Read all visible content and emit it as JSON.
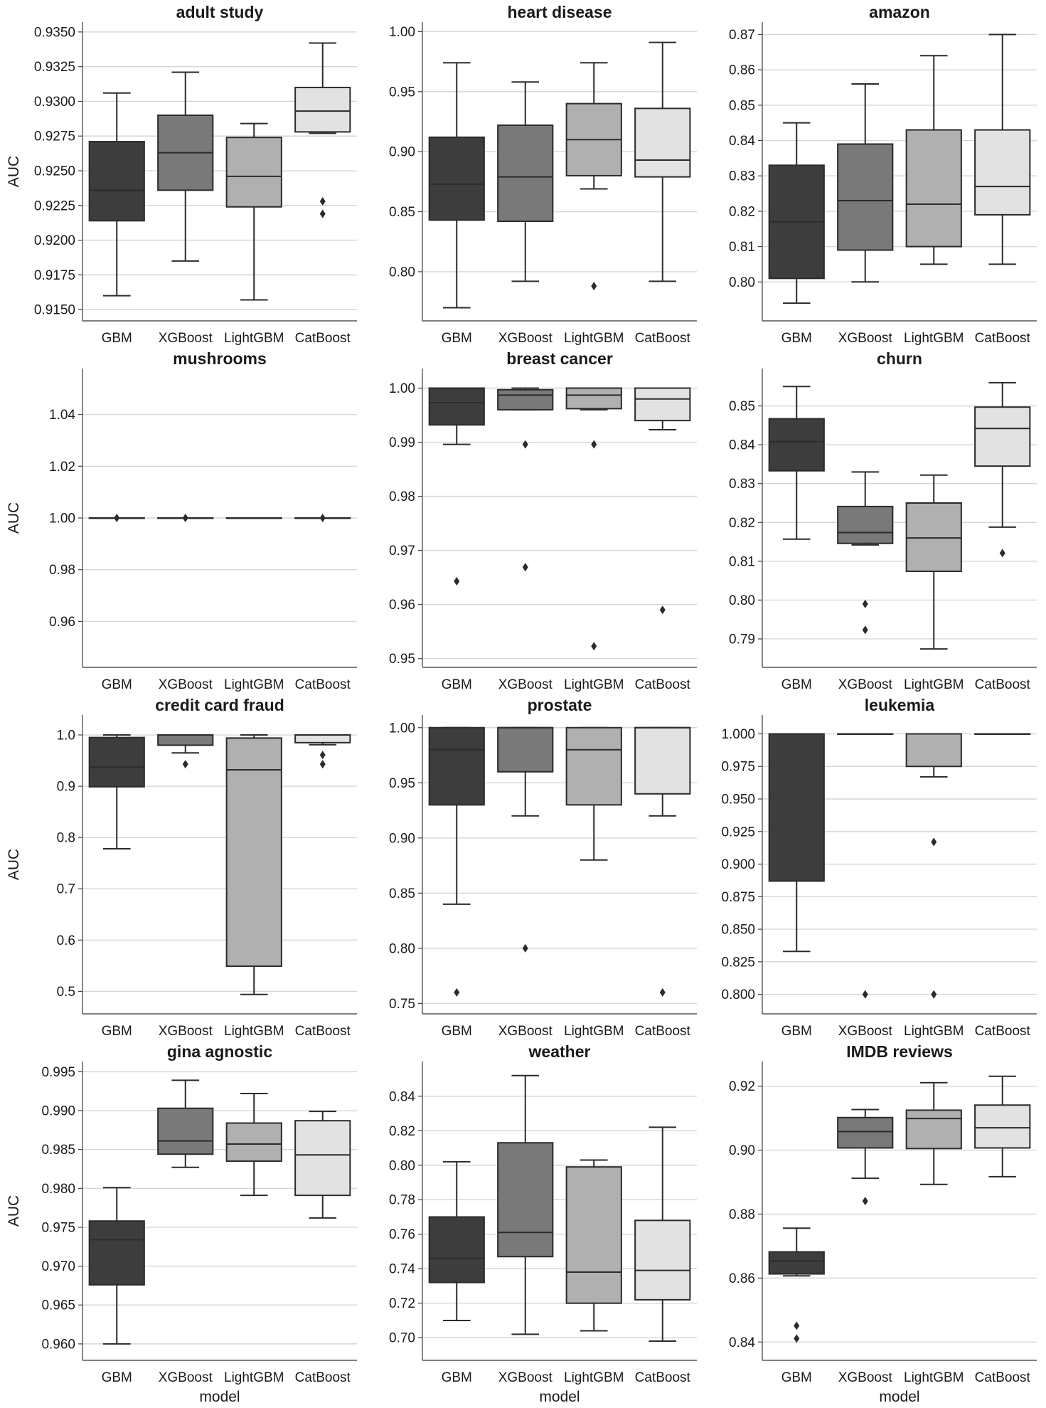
{
  "figure": {
    "x_axis_label": "model",
    "y_axis_label": "AUC",
    "model_colors": [
      "#3d3d3d",
      "#797979",
      "#b0b0b0",
      "#e2e2e2"
    ]
  },
  "chart_data": [
    {
      "type": "box",
      "title": "adult study",
      "ylabel": "AUC",
      "xlabel": "",
      "categories": [
        "GBM",
        "XGBoost",
        "LightGBM",
        "CatBoost"
      ],
      "ylim": [
        0.9147,
        0.9352
      ],
      "yticks": [
        "0.9150",
        "0.9175",
        "0.9200",
        "0.9225",
        "0.9250",
        "0.9275",
        "0.9300",
        "0.9325",
        "0.9350"
      ],
      "boxes": [
        {
          "whislo": 0.916,
          "q1": 0.9214,
          "med": 0.9236,
          "q3": 0.9271,
          "whishi": 0.9306,
          "fliers": []
        },
        {
          "whislo": 0.9185,
          "q1": 0.9236,
          "med": 0.9263,
          "q3": 0.929,
          "whishi": 0.9321,
          "fliers": []
        },
        {
          "whislo": 0.9157,
          "q1": 0.9224,
          "med": 0.9246,
          "q3": 0.9274,
          "whishi": 0.9284,
          "fliers": []
        },
        {
          "whislo": 0.9277,
          "q1": 0.9278,
          "med": 0.9293,
          "q3": 0.931,
          "whishi": 0.9342,
          "fliers": [
            0.9228,
            0.9219
          ]
        }
      ]
    },
    {
      "type": "box",
      "title": "heart disease",
      "ylabel": "",
      "xlabel": "",
      "categories": [
        "GBM",
        "XGBoost",
        "LightGBM",
        "CatBoost"
      ],
      "ylim": [
        0.765,
        1.002
      ],
      "yticks": [
        "0.80",
        "0.85",
        "0.90",
        "0.95",
        "1.00"
      ],
      "boxes": [
        {
          "whislo": 0.77,
          "q1": 0.843,
          "med": 0.873,
          "q3": 0.912,
          "whishi": 0.974,
          "fliers": []
        },
        {
          "whislo": 0.792,
          "q1": 0.842,
          "med": 0.879,
          "q3": 0.922,
          "whishi": 0.958,
          "fliers": []
        },
        {
          "whislo": 0.869,
          "q1": 0.88,
          "med": 0.91,
          "q3": 0.94,
          "whishi": 0.974,
          "fliers": [
            0.788
          ]
        },
        {
          "whislo": 0.792,
          "q1": 0.879,
          "med": 0.893,
          "q3": 0.936,
          "whishi": 0.991,
          "fliers": []
        }
      ]
    },
    {
      "type": "box",
      "title": "amazon",
      "ylabel": "",
      "xlabel": "",
      "categories": [
        "GBM",
        "XGBoost",
        "LightGBM",
        "CatBoost"
      ],
      "ylim": [
        0.791,
        0.8715
      ],
      "yticks": [
        "0.80",
        "0.81",
        "0.82",
        "0.83",
        "0.84",
        "0.85",
        "0.86",
        "0.87"
      ],
      "boxes": [
        {
          "whislo": 0.794,
          "q1": 0.801,
          "med": 0.817,
          "q3": 0.833,
          "whishi": 0.845,
          "fliers": []
        },
        {
          "whislo": 0.8,
          "q1": 0.809,
          "med": 0.823,
          "q3": 0.839,
          "whishi": 0.856,
          "fliers": []
        },
        {
          "whislo": 0.805,
          "q1": 0.81,
          "med": 0.822,
          "q3": 0.843,
          "whishi": 0.864,
          "fliers": []
        },
        {
          "whislo": 0.805,
          "q1": 0.819,
          "med": 0.827,
          "q3": 0.843,
          "whishi": 0.87,
          "fliers": []
        }
      ]
    },
    {
      "type": "box",
      "title": "mushrooms",
      "ylabel": "AUC",
      "xlabel": "",
      "categories": [
        "GBM",
        "XGBoost",
        "LightGBM",
        "CatBoost"
      ],
      "ylim": [
        0.945,
        1.055
      ],
      "yticks": [
        "0.96",
        "0.98",
        "1.00",
        "1.02",
        "1.04"
      ],
      "boxes": [
        {
          "whislo": 1.0,
          "q1": 1.0,
          "med": 1.0,
          "q3": 1.0,
          "whishi": 1.0,
          "fliers": [
            1.0
          ]
        },
        {
          "whislo": 1.0,
          "q1": 1.0,
          "med": 1.0,
          "q3": 1.0,
          "whishi": 1.0,
          "fliers": [
            1.0
          ]
        },
        {
          "whislo": 1.0,
          "q1": 1.0,
          "med": 1.0,
          "q3": 1.0,
          "whishi": 1.0,
          "fliers": []
        },
        {
          "whislo": 1.0,
          "q1": 1.0,
          "med": 1.0,
          "q3": 1.0,
          "whishi": 1.0,
          "fliers": [
            1.0
          ]
        }
      ]
    },
    {
      "type": "box",
      "title": "breast cancer",
      "ylabel": "",
      "xlabel": "",
      "categories": [
        "GBM",
        "XGBoost",
        "LightGBM",
        "CatBoost"
      ],
      "ylim": [
        0.9497,
        1.0023
      ],
      "yticks": [
        "0.95",
        "0.96",
        "0.97",
        "0.98",
        "0.99",
        "1.00"
      ],
      "boxes": [
        {
          "whislo": 0.9896,
          "q1": 0.9932,
          "med": 0.9973,
          "q3": 1.0,
          "whishi": 1.0,
          "fliers": [
            0.9643
          ]
        },
        {
          "whislo": 0.996,
          "q1": 0.996,
          "med": 0.9987,
          "q3": 0.9997,
          "whishi": 1.0,
          "fliers": [
            0.9896,
            0.9669
          ]
        },
        {
          "whislo": 0.996,
          "q1": 0.9962,
          "med": 0.9987,
          "q3": 1.0,
          "whishi": 1.0,
          "fliers": [
            0.9896,
            0.9523
          ]
        },
        {
          "whislo": 0.9923,
          "q1": 0.994,
          "med": 0.998,
          "q3": 1.0,
          "whishi": 1.0,
          "fliers": [
            0.959
          ]
        }
      ]
    },
    {
      "type": "box",
      "title": "churn",
      "ylabel": "",
      "xlabel": "",
      "categories": [
        "GBM",
        "XGBoost",
        "LightGBM",
        "CatBoost"
      ],
      "ylim": [
        0.7845,
        0.8578
      ],
      "yticks": [
        "0.79",
        "0.80",
        "0.81",
        "0.82",
        "0.83",
        "0.84",
        "0.85"
      ],
      "boxes": [
        {
          "whislo": 0.8157,
          "q1": 0.8333,
          "med": 0.8408,
          "q3": 0.8467,
          "whishi": 0.855,
          "fliers": []
        },
        {
          "whislo": 0.8142,
          "q1": 0.8146,
          "med": 0.8174,
          "q3": 0.8241,
          "whishi": 0.833,
          "fliers": [
            0.799,
            0.7923
          ]
        },
        {
          "whislo": 0.7874,
          "q1": 0.8074,
          "med": 0.816,
          "q3": 0.825,
          "whishi": 0.8322,
          "fliers": []
        },
        {
          "whislo": 0.8188,
          "q1": 0.8345,
          "med": 0.8442,
          "q3": 0.8497,
          "whishi": 0.856,
          "fliers": [
            0.8121
          ]
        }
      ]
    },
    {
      "type": "box",
      "title": "credit card fraud",
      "ylabel": "AUC",
      "xlabel": "",
      "categories": [
        "GBM",
        "XGBoost",
        "LightGBM",
        "CatBoost"
      ],
      "ylim": [
        0.47,
        1.025
      ],
      "yticks": [
        "0.5",
        "0.6",
        "0.7",
        "0.8",
        "0.9",
        "1.0"
      ],
      "boxes": [
        {
          "whislo": 0.778,
          "q1": 0.899,
          "med": 0.937,
          "q3": 0.995,
          "whishi": 1.0,
          "fliers": []
        },
        {
          "whislo": 0.965,
          "q1": 0.98,
          "med": 1.0,
          "q3": 1.0,
          "whishi": 1.0,
          "fliers": [
            0.943
          ]
        },
        {
          "whislo": 0.494,
          "q1": 0.549,
          "med": 0.932,
          "q3": 0.994,
          "whishi": 1.0,
          "fliers": []
        },
        {
          "whislo": 0.981,
          "q1": 0.985,
          "med": 1.0,
          "q3": 1.0,
          "whishi": 1.0,
          "fliers": [
            0.961,
            0.943
          ]
        }
      ]
    },
    {
      "type": "box",
      "title": "prostate",
      "ylabel": "",
      "xlabel": "",
      "categories": [
        "GBM",
        "XGBoost",
        "LightGBM",
        "CatBoost"
      ],
      "ylim": [
        0.747,
        1.005
      ],
      "yticks": [
        "0.75",
        "0.80",
        "0.85",
        "0.90",
        "0.95",
        "1.00"
      ],
      "boxes": [
        {
          "whislo": 0.84,
          "q1": 0.93,
          "med": 0.98,
          "q3": 1.0,
          "whishi": 1.0,
          "fliers": [
            0.76
          ]
        },
        {
          "whislo": 0.92,
          "q1": 0.96,
          "med": 1.0,
          "q3": 1.0,
          "whishi": 1.0,
          "fliers": [
            0.8
          ]
        },
        {
          "whislo": 0.88,
          "q1": 0.93,
          "med": 0.98,
          "q3": 1.0,
          "whishi": 1.0,
          "fliers": []
        },
        {
          "whislo": 0.92,
          "q1": 0.94,
          "med": 1.0,
          "q3": 1.0,
          "whishi": 1.0,
          "fliers": [
            0.76
          ]
        }
      ]
    },
    {
      "type": "box",
      "title": "leukemia",
      "ylabel": "",
      "xlabel": "",
      "categories": [
        "GBM",
        "XGBoost",
        "LightGBM",
        "CatBoost"
      ],
      "ylim": [
        0.7905,
        1.009
      ],
      "yticks": [
        "0.800",
        "0.825",
        "0.850",
        "0.875",
        "0.900",
        "0.925",
        "0.950",
        "0.975",
        "1.000"
      ],
      "boxes": [
        {
          "whislo": 0.833,
          "q1": 0.887,
          "med": 1.0,
          "q3": 1.0,
          "whishi": 1.0,
          "fliers": []
        },
        {
          "whislo": 1.0,
          "q1": 1.0,
          "med": 1.0,
          "q3": 1.0,
          "whishi": 1.0,
          "fliers": [
            0.8
          ]
        },
        {
          "whislo": 0.967,
          "q1": 0.975,
          "med": 1.0,
          "q3": 1.0,
          "whishi": 1.0,
          "fliers": [
            0.917,
            0.8
          ]
        },
        {
          "whislo": 1.0,
          "q1": 1.0,
          "med": 1.0,
          "q3": 1.0,
          "whishi": 1.0,
          "fliers": []
        }
      ]
    },
    {
      "type": "box",
      "title": "gina agnostic",
      "ylabel": "AUC",
      "xlabel": "model",
      "categories": [
        "GBM",
        "XGBoost",
        "LightGBM",
        "CatBoost"
      ],
      "ylim": [
        0.9588,
        0.9954
      ],
      "yticks": [
        "0.960",
        "0.965",
        "0.970",
        "0.975",
        "0.980",
        "0.985",
        "0.990",
        "0.995"
      ],
      "boxes": [
        {
          "whislo": 0.96,
          "q1": 0.9676,
          "med": 0.9734,
          "q3": 0.9758,
          "whishi": 0.9801,
          "fliers": []
        },
        {
          "whislo": 0.9827,
          "q1": 0.9844,
          "med": 0.9861,
          "q3": 0.9903,
          "whishi": 0.9939,
          "fliers": []
        },
        {
          "whislo": 0.9791,
          "q1": 0.9835,
          "med": 0.9857,
          "q3": 0.9884,
          "whishi": 0.9922,
          "fliers": []
        },
        {
          "whislo": 0.9762,
          "q1": 0.9791,
          "med": 0.9843,
          "q3": 0.9887,
          "whishi": 0.9899,
          "fliers": []
        }
      ]
    },
    {
      "type": "box",
      "title": "weather",
      "ylabel": "",
      "xlabel": "model",
      "categories": [
        "GBM",
        "XGBoost",
        "LightGBM",
        "CatBoost"
      ],
      "ylim": [
        0.691,
        0.856
      ],
      "yticks": [
        "0.70",
        "0.72",
        "0.74",
        "0.76",
        "0.78",
        "0.80",
        "0.82",
        "0.84"
      ],
      "boxes": [
        {
          "whislo": 0.71,
          "q1": 0.732,
          "med": 0.746,
          "q3": 0.77,
          "whishi": 0.802,
          "fliers": []
        },
        {
          "whislo": 0.702,
          "q1": 0.747,
          "med": 0.761,
          "q3": 0.813,
          "whishi": 0.852,
          "fliers": []
        },
        {
          "whislo": 0.704,
          "q1": 0.72,
          "med": 0.738,
          "q3": 0.799,
          "whishi": 0.803,
          "fliers": []
        },
        {
          "whislo": 0.698,
          "q1": 0.722,
          "med": 0.739,
          "q3": 0.768,
          "whishi": 0.822,
          "fliers": []
        }
      ]
    },
    {
      "type": "box",
      "title": "IMDB reviews",
      "ylabel": "",
      "xlabel": "model",
      "categories": [
        "GBM",
        "XGBoost",
        "LightGBM",
        "CatBoost"
      ],
      "ylim": [
        0.8365,
        0.9255
      ],
      "yticks": [
        "0.84",
        "0.86",
        "0.88",
        "0.90",
        "0.92"
      ],
      "boxes": [
        {
          "whislo": 0.8607,
          "q1": 0.8613,
          "med": 0.8653,
          "q3": 0.8682,
          "whishi": 0.8756,
          "fliers": [
            0.8451,
            0.8411
          ]
        },
        {
          "whislo": 0.8912,
          "q1": 0.9007,
          "med": 0.9058,
          "q3": 0.9102,
          "whishi": 0.9127,
          "fliers": [
            0.8841
          ]
        },
        {
          "whislo": 0.8893,
          "q1": 0.9005,
          "med": 0.9099,
          "q3": 0.9125,
          "whishi": 0.9211,
          "fliers": []
        },
        {
          "whislo": 0.8917,
          "q1": 0.9007,
          "med": 0.907,
          "q3": 0.9141,
          "whishi": 0.9231,
          "fliers": []
        }
      ]
    }
  ]
}
